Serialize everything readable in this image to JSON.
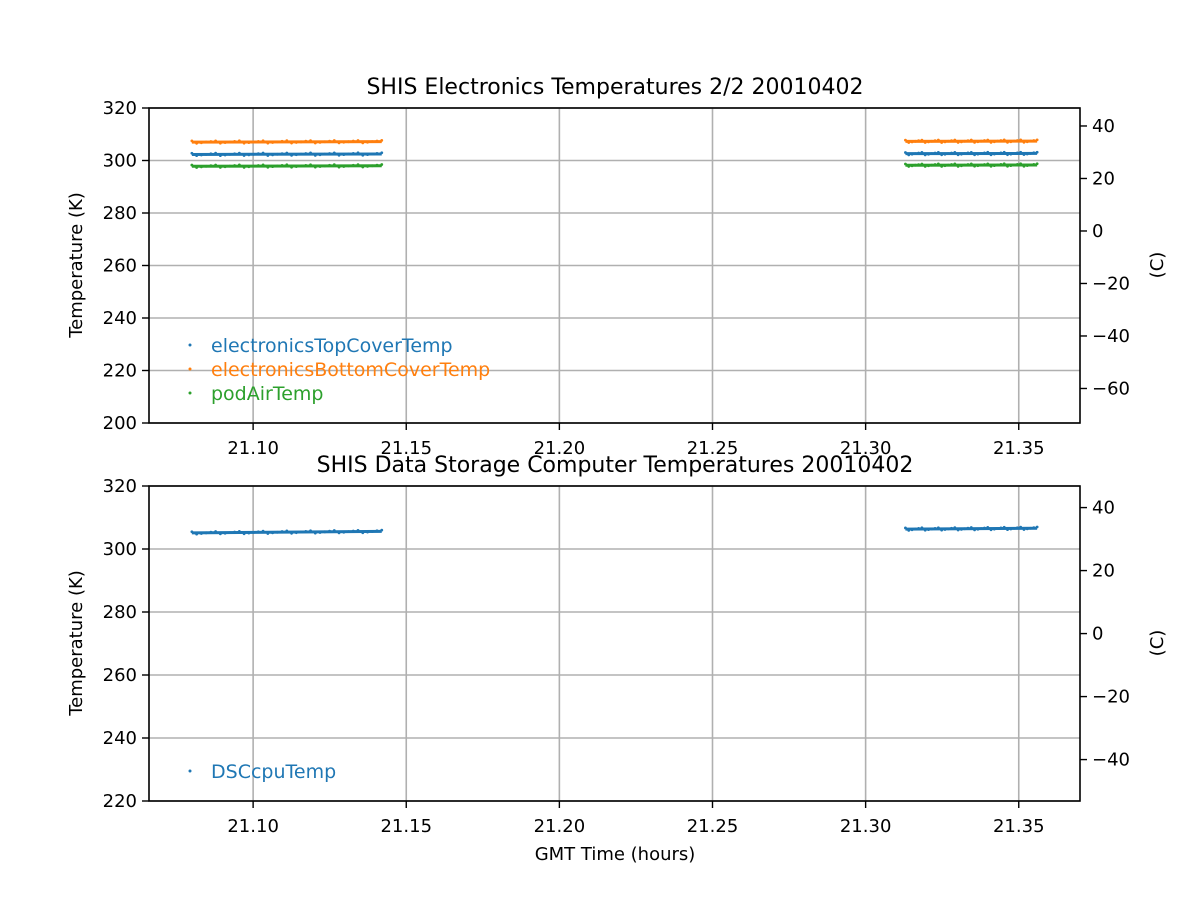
{
  "chart_data": [
    {
      "type": "scatter",
      "title": "SHIS Electronics Temperatures 2/2 20010402",
      "xlabel": "",
      "ylabel": "Temperature (K)",
      "y2label": "(C)",
      "xlim": [
        21.066,
        21.37
      ],
      "ylim": [
        200,
        320
      ],
      "y2lim": [
        -73.15,
        46.85
      ],
      "xticks": [
        "21.10",
        "21.15",
        "21.20",
        "21.25",
        "21.30",
        "21.35"
      ],
      "xtick_values": [
        21.1,
        21.15,
        21.2,
        21.25,
        21.3,
        21.35
      ],
      "yticks": [
        "200",
        "220",
        "240",
        "260",
        "280",
        "300",
        "320"
      ],
      "ytick_values": [
        200,
        220,
        240,
        260,
        280,
        300,
        320
      ],
      "y2ticks": [
        "40",
        "20",
        "0",
        "−20",
        "−40",
        "−60"
      ],
      "y2tick_values": [
        40,
        20,
        0,
        -20,
        -40,
        -60
      ],
      "grid": true,
      "legend_position": "lower-left",
      "series": [
        {
          "name": "electronicsTopCoverTemp",
          "color": "#1f77b4",
          "segments": [
            {
              "x": [
                21.08,
                21.142
              ],
              "y": [
                302.3,
                302.5
              ]
            },
            {
              "x": [
                21.313,
                21.356
              ],
              "y": [
                302.6,
                302.7
              ]
            }
          ]
        },
        {
          "name": "electronicsBottomCoverTemp",
          "color": "#ff7f0e",
          "segments": [
            {
              "x": [
                21.08,
                21.142
              ],
              "y": [
                307.0,
                307.2
              ]
            },
            {
              "x": [
                21.313,
                21.356
              ],
              "y": [
                307.3,
                307.4
              ]
            }
          ]
        },
        {
          "name": "podAirTemp",
          "color": "#2ca02c",
          "segments": [
            {
              "x": [
                21.08,
                21.142
              ],
              "y": [
                297.8,
                298.0
              ]
            },
            {
              "x": [
                21.313,
                21.356
              ],
              "y": [
                298.2,
                298.3
              ]
            }
          ]
        }
      ]
    },
    {
      "type": "scatter",
      "title": "SHIS Data Storage Computer Temperatures 20010402",
      "xlabel": "GMT Time (hours)",
      "ylabel": "Temperature (K)",
      "y2label": "(C)",
      "xlim": [
        21.066,
        21.37
      ],
      "ylim": [
        220,
        320
      ],
      "y2lim": [
        -53.15,
        46.85
      ],
      "xticks": [
        "21.10",
        "21.15",
        "21.20",
        "21.25",
        "21.30",
        "21.35"
      ],
      "xtick_values": [
        21.1,
        21.15,
        21.2,
        21.25,
        21.3,
        21.35
      ],
      "yticks": [
        "220",
        "240",
        "260",
        "280",
        "300",
        "320"
      ],
      "ytick_values": [
        220,
        240,
        260,
        280,
        300,
        320
      ],
      "y2ticks": [
        "40",
        "20",
        "0",
        "−20",
        "−40"
      ],
      "y2tick_values": [
        40,
        20,
        0,
        -20,
        -40
      ],
      "grid": true,
      "legend_position": "lower-left",
      "series": [
        {
          "name": "DSCcpuTemp",
          "color": "#1f77b4",
          "segments": [
            {
              "x": [
                21.08,
                21.142
              ],
              "y": [
                305.1,
                305.6
              ]
            },
            {
              "x": [
                21.313,
                21.356
              ],
              "y": [
                306.3,
                306.6
              ]
            }
          ]
        }
      ]
    }
  ]
}
